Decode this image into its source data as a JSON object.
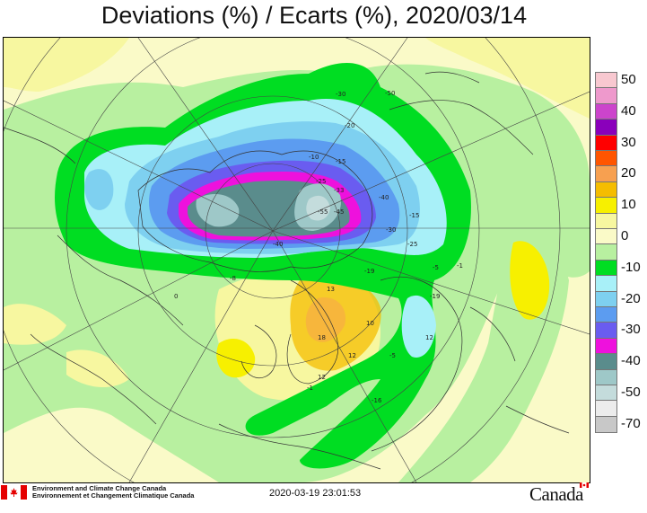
{
  "header": {
    "title": "Deviations (%) / Ecarts (%), 2020/03/14"
  },
  "legend": {
    "items": [
      {
        "label": "50",
        "color": "#f8c8d0"
      },
      {
        "label": "",
        "color": "#ee99cc"
      },
      {
        "label": "40",
        "color": "#cc44cc"
      },
      {
        "label": "",
        "color": "#8a00bb"
      },
      {
        "label": "30",
        "color": "#ff0000"
      },
      {
        "label": "",
        "color": "#ff5500"
      },
      {
        "label": "20",
        "color": "#f7a050"
      },
      {
        "label": "",
        "color": "#f5bd00"
      },
      {
        "label": "10",
        "color": "#f7f000"
      },
      {
        "label": "",
        "color": "#f7f7a0"
      },
      {
        "label": "0",
        "color": "#fafac8"
      },
      {
        "label": "",
        "color": "#b8f0a0"
      },
      {
        "label": "-10",
        "color": "#00dd22"
      },
      {
        "label": "",
        "color": "#a8f0f8"
      },
      {
        "label": "-20",
        "color": "#7ed0f0"
      },
      {
        "label": "",
        "color": "#5c9cf0"
      },
      {
        "label": "-30",
        "color": "#6a5cf0"
      },
      {
        "label": "",
        "color": "#ee11dd"
      },
      {
        "label": "-40",
        "color": "#5a8c8c"
      },
      {
        "label": "",
        "color": "#9ec8c8"
      },
      {
        "label": "-50",
        "color": "#c4dcdc"
      },
      {
        "label": "",
        "color": "#ececec"
      },
      {
        "label": "-70",
        "color": "#c8c8c8"
      }
    ]
  },
  "map": {
    "contour_labels": [
      "-50",
      "-30",
      "-40",
      "-20",
      "-10",
      "-15",
      "-25",
      "-33",
      "-55",
      "-45",
      "-5",
      "-19",
      "20",
      "13",
      "10",
      "18",
      "12",
      "-16",
      "-1",
      "-8",
      "0"
    ]
  },
  "footer": {
    "agency_en": "Environment and Climate Change Canada",
    "agency_fr": "Environnement et Changement Climatique Canada",
    "timestamp": "2020-03-19 23:01:53",
    "wordmark": "Canada"
  }
}
